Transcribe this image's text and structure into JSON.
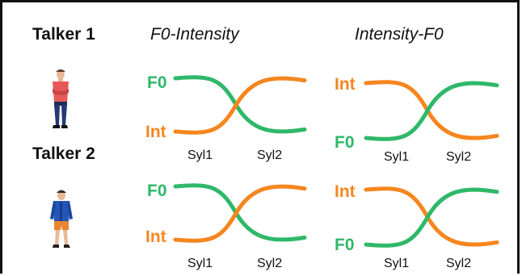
{
  "colors": {
    "f0": "#2fb86a",
    "intensity": "#f5861f",
    "text": "#111111",
    "border": "#111111"
  },
  "talkers": [
    {
      "label": "Talker 1",
      "figure": "standing-man-red-shirt"
    },
    {
      "label": "Talker 2",
      "figure": "walking-man-blue-jacket"
    }
  ],
  "conditions": [
    {
      "label": "F0-Intensity",
      "high": "F0",
      "low": "Int"
    },
    {
      "label": "Intensity-F0",
      "high": "Int",
      "low": "F0"
    }
  ],
  "syllables": [
    "Syl1",
    "Syl2"
  ]
}
